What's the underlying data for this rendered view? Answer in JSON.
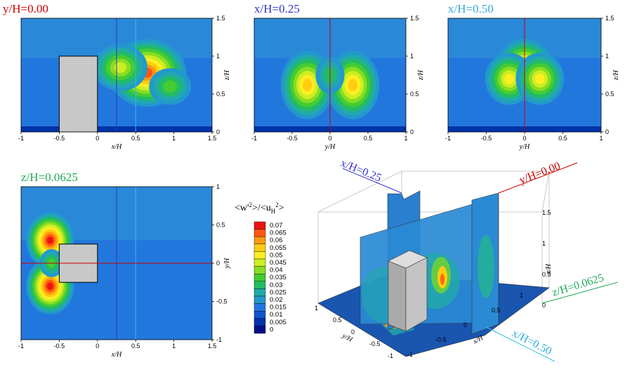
{
  "chart_data": [
    {
      "type": "heatmap",
      "panel": "top-left",
      "title": "y/H=0.00",
      "title_color": "#cc0000",
      "xlabel": "x/H",
      "ylabel": "z/H",
      "xlim": [
        -1,
        1.5
      ],
      "ylim": [
        0,
        1.5
      ],
      "xticks": [
        "-1",
        "-0.5",
        "0",
        "0.5",
        "1",
        "1.5"
      ],
      "yticks": [
        "0",
        "0.5",
        "1",
        "1.5"
      ],
      "obstacle": {
        "x": [
          -0.5,
          0
        ],
        "z": [
          0,
          1
        ]
      },
      "hotspots": [
        {
          "x": 0.65,
          "z": 0.78,
          "w": 0.065
        },
        {
          "x": 0.3,
          "z": 0.85,
          "w": 0.045
        },
        {
          "x": 0.95,
          "z": 0.6,
          "w": 0.035
        }
      ],
      "markers": [
        {
          "x": 0.25,
          "color": "#3333cc"
        },
        {
          "x": 0.5,
          "color": "#33bbee"
        }
      ]
    },
    {
      "type": "heatmap",
      "panel": "top-middle",
      "title": "x/H=0.25",
      "title_color": "#3333cc",
      "xlabel": "y/H",
      "ylabel": "z/H",
      "xlim": [
        -1,
        1
      ],
      "ylim": [
        0,
        1.5
      ],
      "xticks": [
        "-1",
        "-0.5",
        "0",
        "0.5",
        "1"
      ],
      "yticks": [
        "0",
        "0.5",
        "1",
        "1.5"
      ],
      "hotspots": [
        {
          "x": -0.3,
          "z": 0.62,
          "w": 0.055
        },
        {
          "x": 0.3,
          "z": 0.62,
          "w": 0.055
        },
        {
          "x": 0,
          "z": 0.75,
          "w": 0.03
        }
      ],
      "markers": [
        {
          "x": 0.0,
          "color": "#cc0000"
        }
      ]
    },
    {
      "type": "heatmap",
      "panel": "top-right",
      "title": "x/H=0.50",
      "title_color": "#33aadd",
      "xlabel": "y/H",
      "ylabel": "z/H",
      "xlim": [
        -1,
        1
      ],
      "ylim": [
        0,
        1.5
      ],
      "xticks": [
        "-1",
        "-0.5",
        "0",
        "0.5",
        "1"
      ],
      "yticks": [
        "0",
        "0.5",
        "1",
        "1.5"
      ],
      "hotspots": [
        {
          "x": 0,
          "z": 0.82,
          "w": 0.06
        },
        {
          "x": -0.2,
          "z": 0.7,
          "w": 0.05
        },
        {
          "x": 0.2,
          "z": 0.7,
          "w": 0.05
        }
      ],
      "markers": [
        {
          "x": 0.0,
          "color": "#cc0000"
        }
      ]
    },
    {
      "type": "heatmap",
      "panel": "bottom-left",
      "title": "z/H=0.0625",
      "title_color": "#22aa55",
      "xlabel": "x/H",
      "ylabel": "y/H",
      "xlim": [
        -1,
        1.5
      ],
      "ylim": [
        -1,
        1
      ],
      "xticks": [
        "-1",
        "-0.5",
        "0",
        "0.5",
        "1",
        "1.5"
      ],
      "yticks": [
        "-1",
        "-0.5",
        "0",
        "0.5",
        "1"
      ],
      "obstacle": {
        "x": [
          -0.5,
          0
        ],
        "y": [
          -0.25,
          0.25
        ]
      },
      "hotspots": [
        {
          "x": -0.62,
          "y": 0.3,
          "w": 0.07
        },
        {
          "x": -0.62,
          "y": -0.3,
          "w": 0.07
        },
        {
          "x": -0.6,
          "y": 0,
          "w": 0.035
        }
      ],
      "markers": [
        {
          "x": 0.25,
          "color": "#3333cc"
        },
        {
          "x": 0.5,
          "color": "#33bbee"
        },
        {
          "y": 0.0,
          "color": "#cc0000"
        }
      ]
    }
  ],
  "legend": {
    "title": "<w'²>/<uH²>",
    "levels": [
      "0.07",
      "0.065",
      "0.06",
      "0.055",
      "0.05",
      "0.045",
      "0.04",
      "0.035",
      "0.03",
      "0.025",
      "0.02",
      "0.015",
      "0.01",
      "0.005",
      "0"
    ],
    "colors": [
      "#ee1111",
      "#ff5511",
      "#ff9911",
      "#ffcc11",
      "#ffee22",
      "#ccee22",
      "#88dd22",
      "#44cc33",
      "#22bb66",
      "#22aaaa",
      "#2299cc",
      "#2277dd",
      "#1155cc",
      "#0033aa",
      "#001188"
    ]
  },
  "view3d": {
    "labels": {
      "x_axis": "x/H",
      "y_axis": "y/H",
      "z_axis": "z/H",
      "plane_y": "y/H=0.00",
      "plane_x025": "x/H=0.25",
      "plane_x050": "x/H=0.50",
      "plane_z": "z/H=0.0625"
    },
    "ticks": {
      "x": [
        "-1",
        "-0.5",
        "0",
        "0.5",
        "1"
      ],
      "y": [
        "-1",
        "-0.5",
        "0",
        "0.5",
        "1"
      ],
      "z": [
        "0",
        "0.5",
        "1",
        "1.5"
      ]
    }
  }
}
